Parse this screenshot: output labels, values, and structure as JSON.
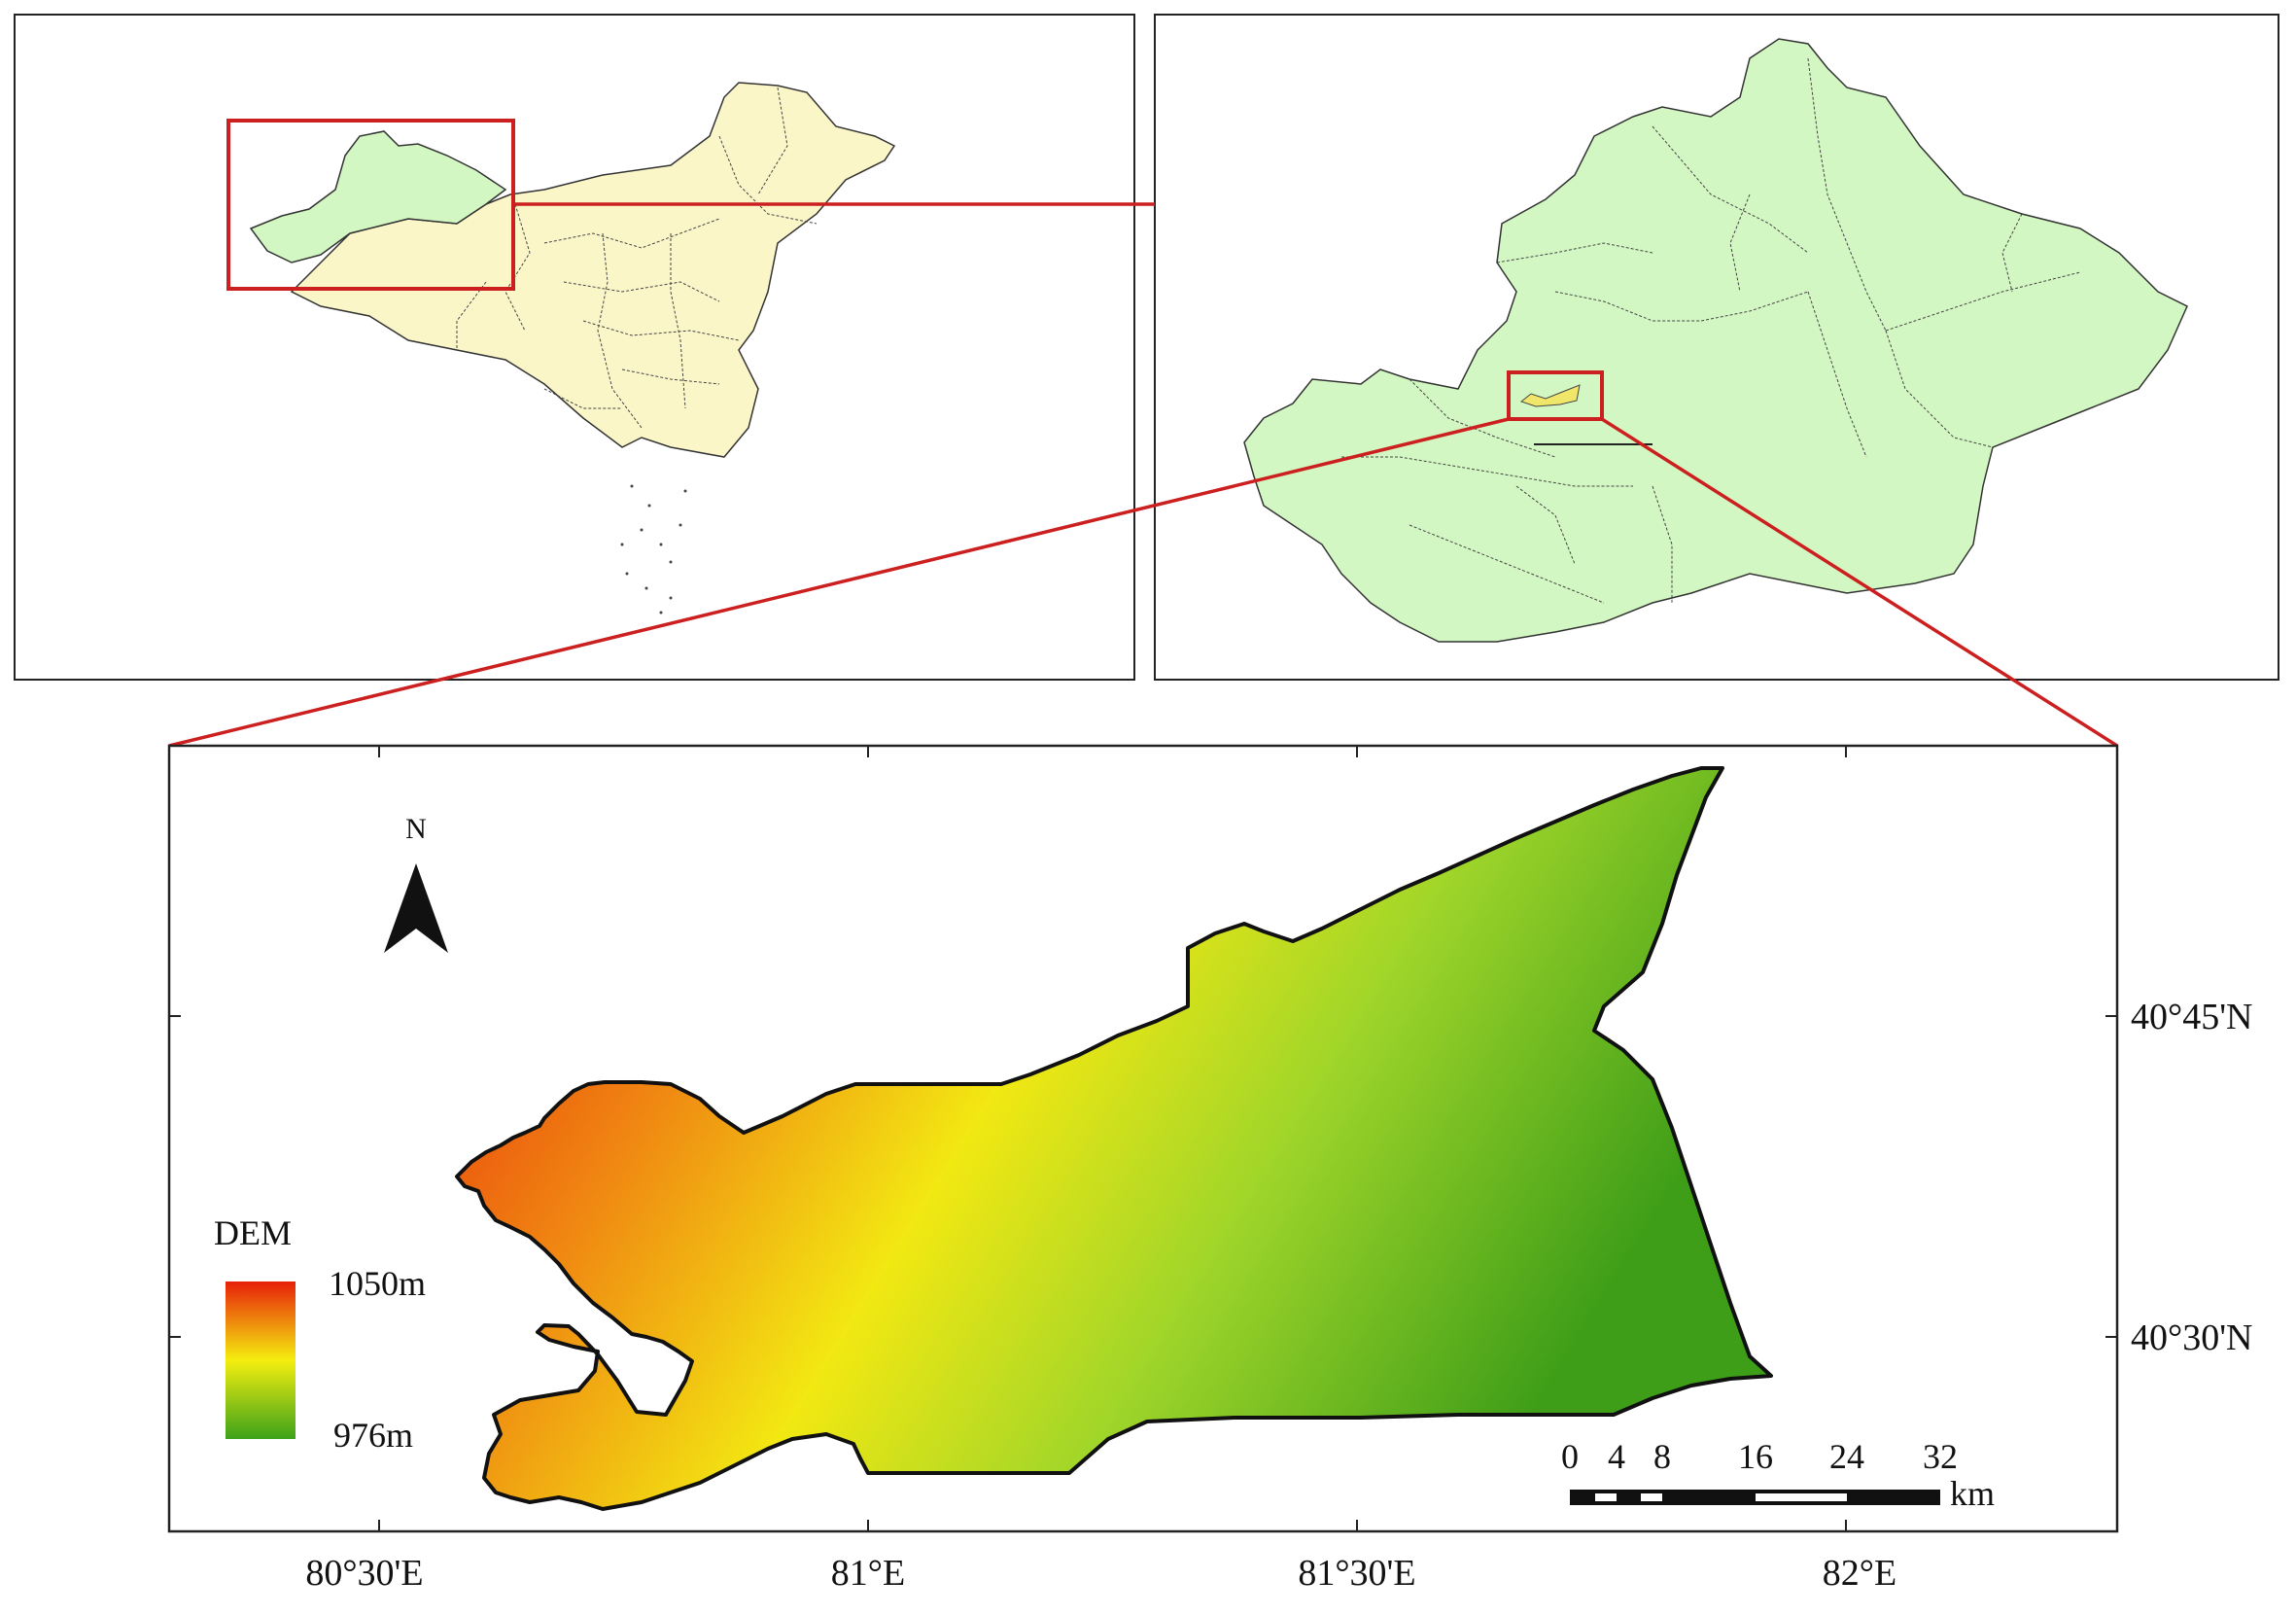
{
  "north_arrow": {
    "label": "N"
  },
  "legend": {
    "title": "DEM",
    "high_label": "1050m",
    "low_label": "976m",
    "high_color": "#e8200a",
    "mid_color": "#f4ee10",
    "low_color": "#3da21a"
  },
  "scale_bar": {
    "ticks": [
      "0",
      "4",
      "8",
      "16",
      "24",
      "32"
    ],
    "unit": "km"
  },
  "axes": {
    "x_ticks": [
      "80°30'E",
      "81°E",
      "81°30'E",
      "82°E"
    ],
    "y_ticks": [
      "40°45'N",
      "40°30'N"
    ]
  },
  "colors": {
    "china_fill": "#fbf6c8",
    "xinjiang_fill": "#d3f7c2",
    "highlight_red": "#cc1f1f",
    "study_area_small_fill": "#f0e66a"
  }
}
